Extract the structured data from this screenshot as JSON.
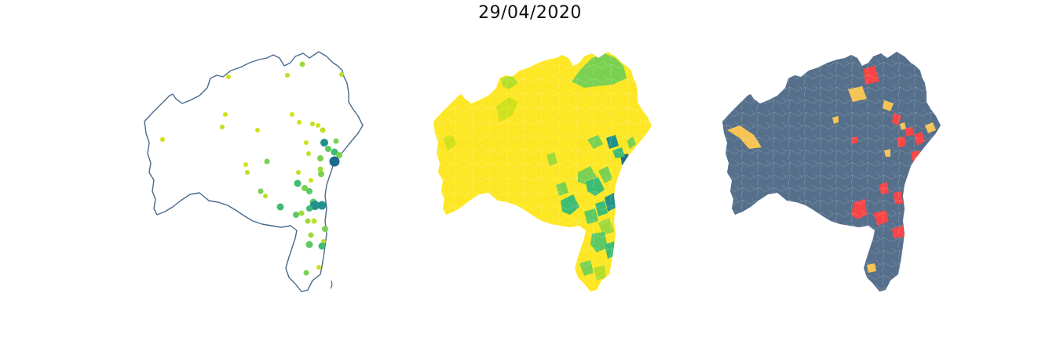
{
  "title": "29/04/2020",
  "colors": {
    "outline": "#4a6a8a",
    "choropleth_base": "#fde725",
    "status_base": "#56708c",
    "status_red": "#f84545",
    "status_orange": "#f5c454",
    "viridis_low": "#d0e11c",
    "viridis_mid": "#7ad151",
    "viridis_green": "#3fbc73",
    "viridis_teal": "#21918c",
    "viridis_dark": "#1e6a8c"
  },
  "panels": [
    {
      "name": "bubble-map",
      "style": "proportional-symbols-on-outline"
    },
    {
      "name": "choropleth-map",
      "style": "viridis-choropleth"
    },
    {
      "name": "status-map",
      "style": "categorical"
    }
  ]
}
